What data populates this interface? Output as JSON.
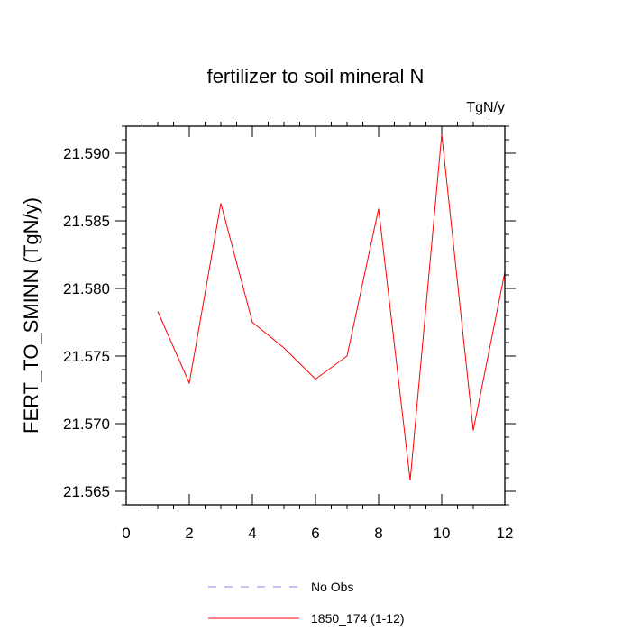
{
  "chart_data": {
    "type": "line",
    "title": "fertilizer to soil mineral N",
    "units_label": "TgN/y",
    "ylabel": "FERT_TO_SMINN  (TgN/y)",
    "xlabel": "",
    "xlim": [
      0,
      12
    ],
    "ylim": [
      21.564,
      21.592
    ],
    "x_ticks": [
      0,
      2,
      4,
      6,
      8,
      10,
      12
    ],
    "x_tick_labels": [
      "0",
      "2",
      "4",
      "6",
      "8",
      "10",
      "12"
    ],
    "y_ticks": [
      21.565,
      21.57,
      21.575,
      21.58,
      21.585,
      21.59
    ],
    "y_tick_labels": [
      "21.565",
      "21.570",
      "21.575",
      "21.580",
      "21.585",
      "21.590"
    ],
    "grid": false,
    "legend_position": "bottom",
    "series": [
      {
        "name": "1850_174 (1-12)",
        "color": "#ff0000",
        "style": "solid",
        "x": [
          1,
          2,
          3,
          4,
          5,
          6,
          7,
          8,
          9,
          10,
          11,
          12
        ],
        "y": [
          21.5783,
          21.573,
          21.5863,
          21.5775,
          21.5756,
          21.5733,
          21.575,
          21.5859,
          21.5658,
          21.5914,
          21.5695,
          21.5812
        ]
      }
    ],
    "legend": [
      {
        "label": "No Obs",
        "color": "#8a8af0",
        "style": "dashed"
      },
      {
        "label": "1850_174 (1-12)",
        "color": "#ff0000",
        "style": "solid"
      }
    ]
  }
}
